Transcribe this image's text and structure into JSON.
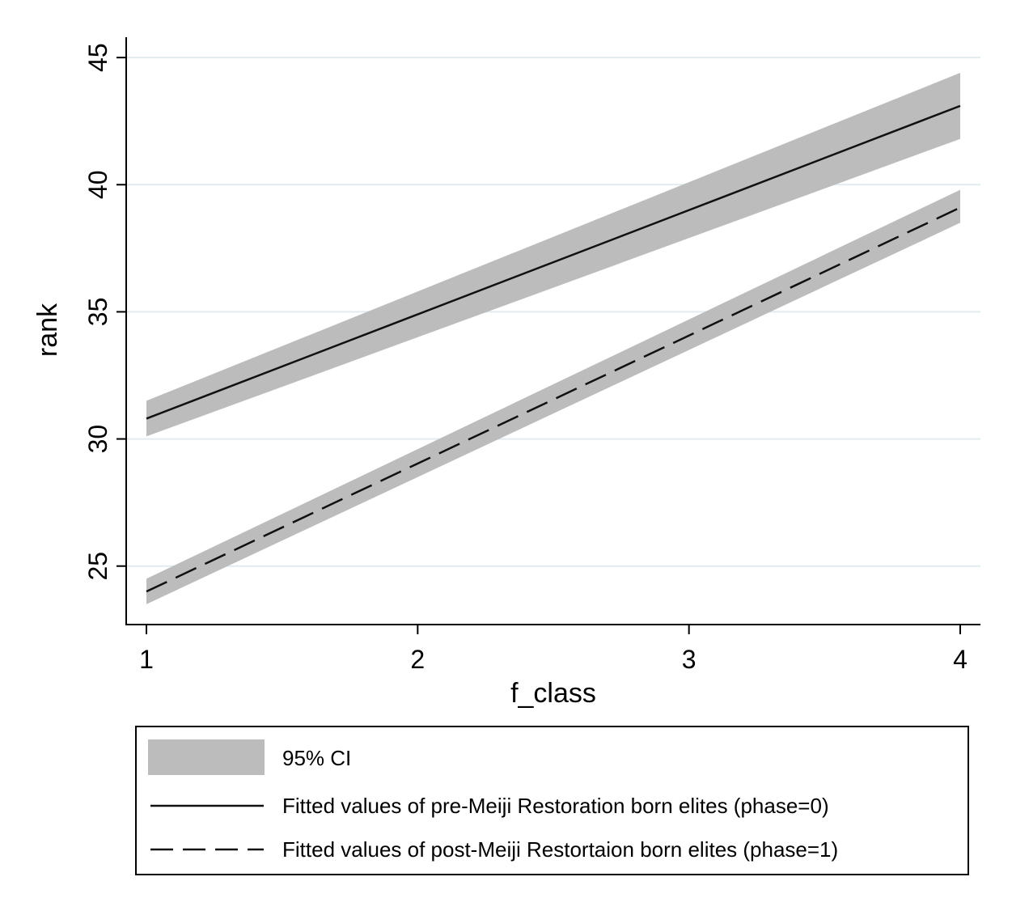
{
  "chart_data": {
    "type": "line",
    "xlabel": "f_class",
    "ylabel": "rank",
    "xlim": [
      1,
      4
    ],
    "ylim": [
      22.7,
      45.8
    ],
    "x_ticks": [
      "1",
      "2",
      "3",
      "4"
    ],
    "y_ticks": [
      "25",
      "30",
      "35",
      "40",
      "45"
    ],
    "grid": "horizontal",
    "legend_position": "bottom",
    "series": [
      {
        "name": "Fitted values of pre-Meiji Restoration born elites (phase=0)",
        "style": "solid",
        "x": [
          1,
          4
        ],
        "y": [
          30.8,
          43.1
        ],
        "ci_lower": [
          30.1,
          41.8
        ],
        "ci_upper": [
          31.5,
          44.4
        ]
      },
      {
        "name": "Fitted values of post-Meiji Restortaion born elites (phase=1)",
        "style": "dashed",
        "x": [
          1,
          4
        ],
        "y": [
          24.0,
          39.1
        ],
        "ci_lower": [
          23.5,
          38.5
        ],
        "ci_upper": [
          24.5,
          39.8
        ]
      }
    ],
    "legend": [
      {
        "label": "95% CI",
        "kind": "band"
      },
      {
        "label": "Fitted values of pre-Meiji Restoration born elites (phase=0)",
        "kind": "solid"
      },
      {
        "label": "Fitted values of post-Meiji Restortaion born elites (phase=1)",
        "kind": "dashed"
      }
    ],
    "colors": {
      "band": "#bcbcbc",
      "line": "#111111",
      "grid": "#e2ecef",
      "axis": "#000000"
    }
  }
}
